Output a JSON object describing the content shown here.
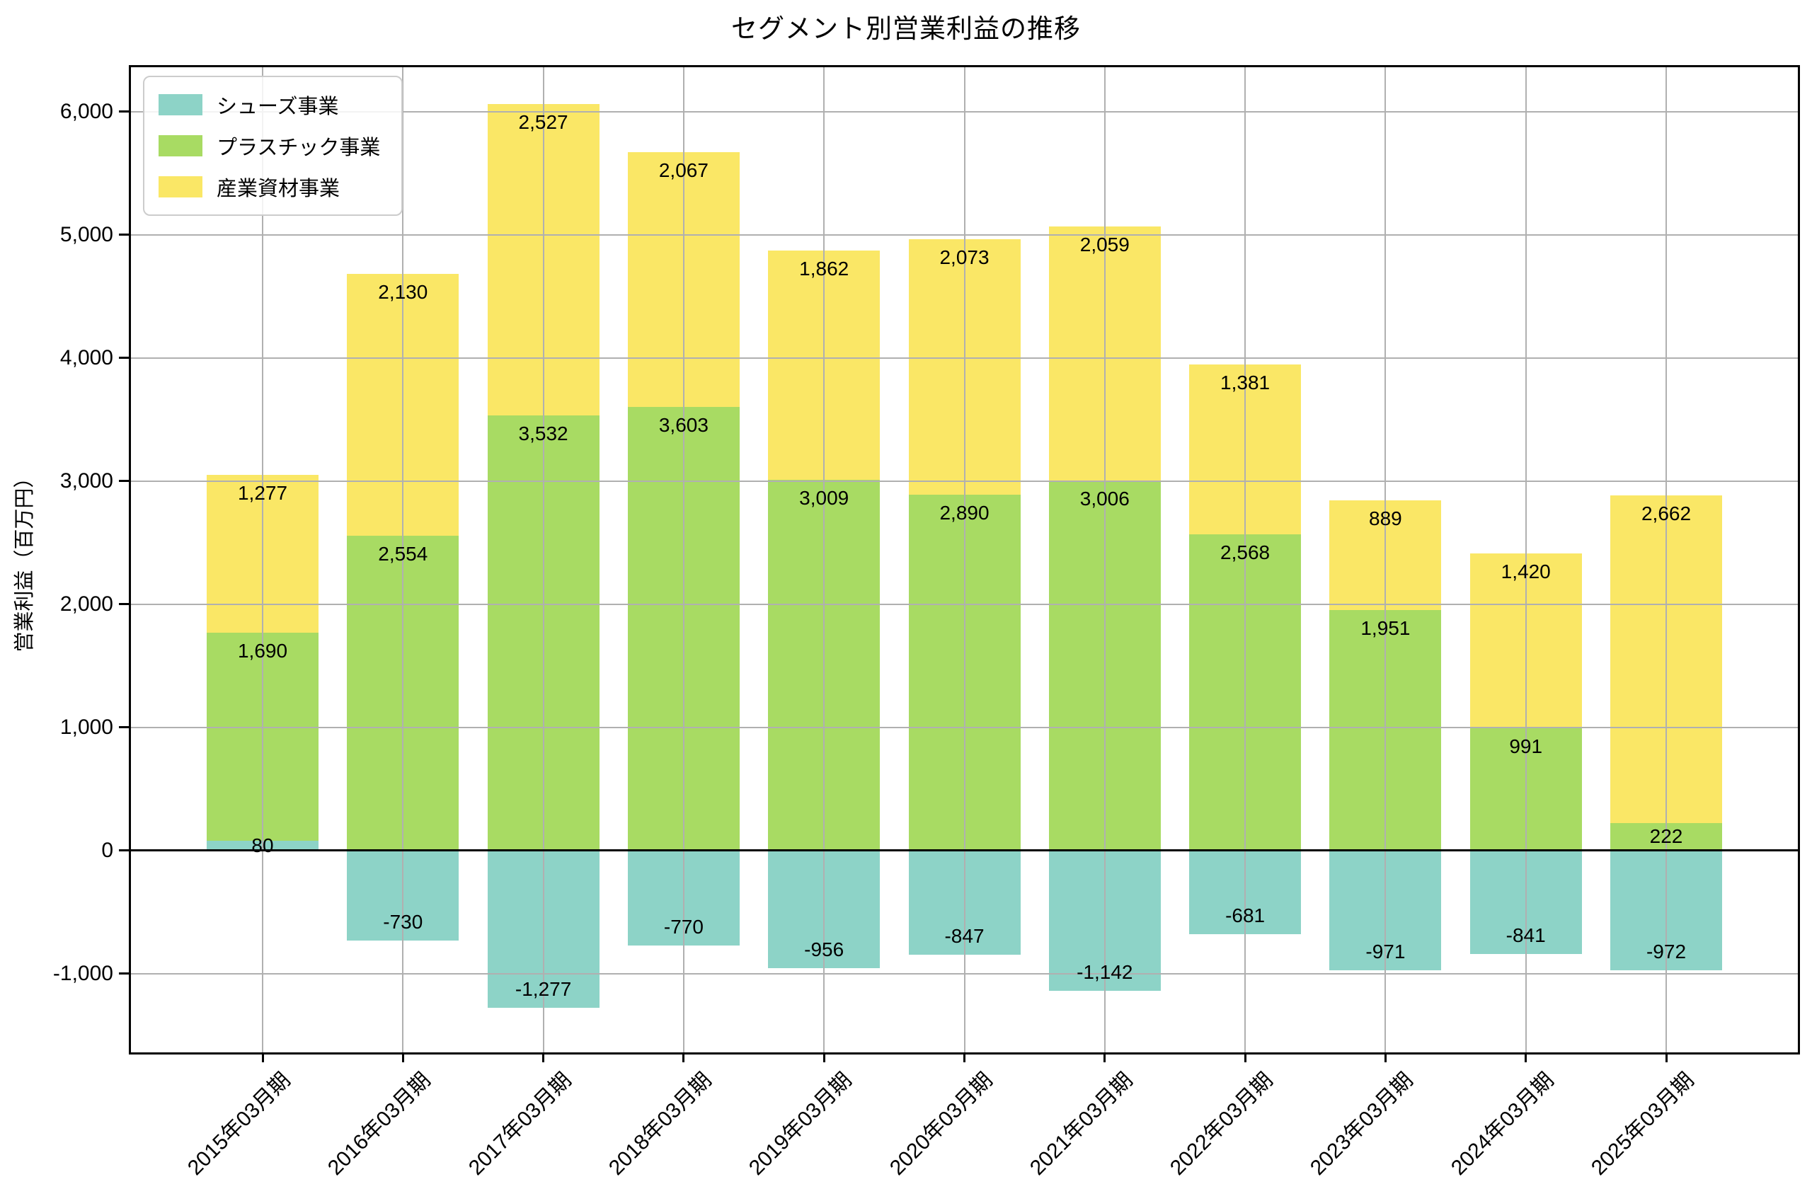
{
  "chart_data": {
    "type": "bar",
    "stacked": true,
    "title": "セグメント別営業利益の推移",
    "ylabel": "営業利益（百万円）",
    "categories": [
      "2015年03月期",
      "2016年03月期",
      "2017年03月期",
      "2018年03月期",
      "2019年03月期",
      "2020年03月期",
      "2021年03月期",
      "2022年03月期",
      "2023年03月期",
      "2024年03月期",
      "2025年03月期"
    ],
    "series": [
      {
        "name": "シューズ事業",
        "color": "#8DD3C7",
        "values": [
          80,
          -730,
          -1277,
          -770,
          -956,
          -847,
          -1142,
          -681,
          -971,
          -841,
          -972
        ]
      },
      {
        "name": "プラスチック事業",
        "color": "#A8DB63",
        "values": [
          1690,
          2554,
          3532,
          3603,
          3009,
          2890,
          3006,
          2568,
          1951,
          991,
          222
        ]
      },
      {
        "name": "産業資材事業",
        "color": "#FAE766",
        "values": [
          1277,
          2130,
          2527,
          2067,
          1862,
          2073,
          2059,
          1381,
          889,
          1420,
          2662
        ]
      }
    ],
    "yticks": [
      -1000,
      0,
      1000,
      2000,
      3000,
      4000,
      5000,
      6000
    ],
    "ylim": [
      -1640,
      6360
    ],
    "grid": true,
    "grid_on_top": true,
    "legend_position": "upper-left",
    "value_labels": "comma-formatted"
  }
}
